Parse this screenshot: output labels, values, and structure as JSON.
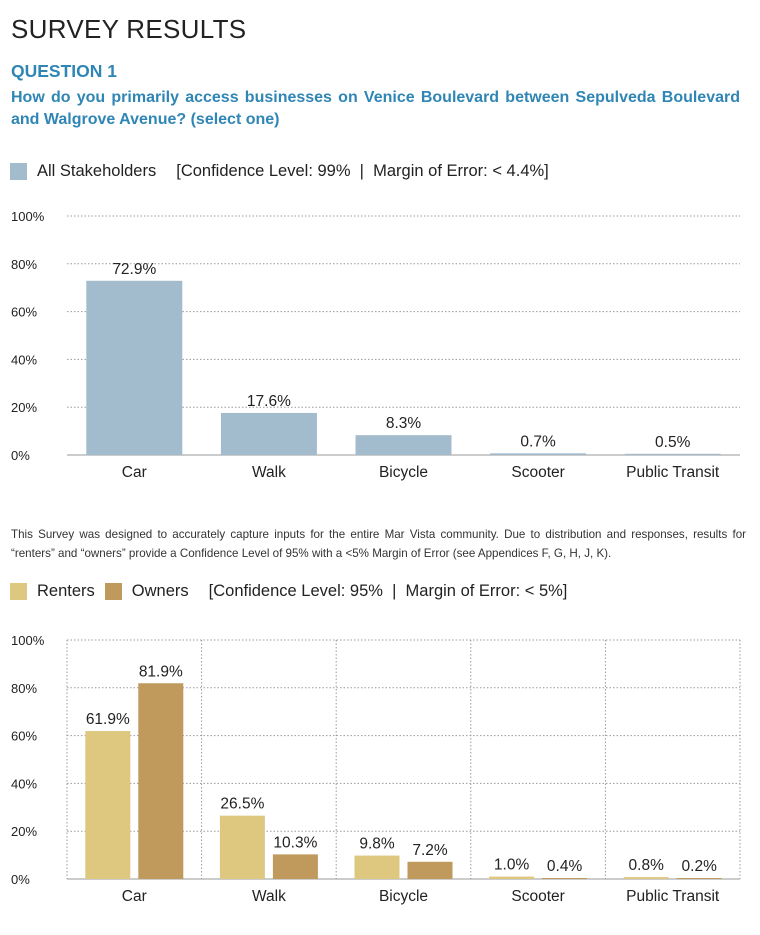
{
  "page": {
    "title": "SURVEY RESULTS",
    "question_label": "QUESTION 1",
    "question_text": "How do you primarily access businesses on Venice Boulevard between Sepulveda Boulevard and Walgrove Avenue? (select one)",
    "note": "This Survey was designed to accurately capture inputs for the entire Mar Vista community. Due to distribution and responses, results for “renters” and “owners” provide a Confidence Level of 95% with a <5% Margin of Error (see Appendices F, G, H, J, K)."
  },
  "legend1": {
    "label": "All Stakeholders",
    "info": "[Confidence Level: 99%  |  Margin of Error: < 4.4%]"
  },
  "legend2": {
    "label_a": "Renters",
    "label_b": "Owners",
    "info": "[Confidence Level: 95%  |  Margin of Error: < 5%]"
  },
  "colors": {
    "stakeholders": "#a3bccd",
    "renters": "#dec77f",
    "owners": "#bf9a5c",
    "heading_blue": "#2f86b5"
  },
  "chart_data": [
    {
      "type": "bar",
      "categories": [
        "Car",
        "Walk",
        "Bicycle",
        "Scooter",
        "Public Transit"
      ],
      "series": [
        {
          "name": "All Stakeholders",
          "values": [
            72.9,
            17.6,
            8.3,
            0.7,
            0.5
          ],
          "labels": [
            "72.9%",
            "17.6%",
            "8.3%",
            "0.7%",
            "0.5%"
          ]
        }
      ],
      "yticks": [
        "100%",
        "80%",
        "60%",
        "40%",
        "20%",
        "0%"
      ],
      "ylim": [
        0,
        100
      ],
      "grid": "horizontal dotted",
      "legend_position": "top-left"
    },
    {
      "type": "bar",
      "categories": [
        "Car",
        "Walk",
        "Bicycle",
        "Scooter",
        "Public Transit"
      ],
      "series": [
        {
          "name": "Renters",
          "values": [
            61.9,
            26.5,
            9.8,
            1.0,
            0.8
          ],
          "labels": [
            "61.9%",
            "26.5%",
            "9.8%",
            "1.0%",
            "0.8%"
          ]
        },
        {
          "name": "Owners",
          "values": [
            81.9,
            10.3,
            7.2,
            0.4,
            0.2
          ],
          "labels": [
            "81.9%",
            "10.3%",
            "7.2%",
            "0.4%",
            "0.2%"
          ]
        }
      ],
      "yticks": [
        "100%",
        "80%",
        "60%",
        "40%",
        "20%",
        "0%"
      ],
      "ylim": [
        0,
        100
      ],
      "grid": "horizontal and vertical dotted",
      "legend_position": "top-left"
    }
  ]
}
